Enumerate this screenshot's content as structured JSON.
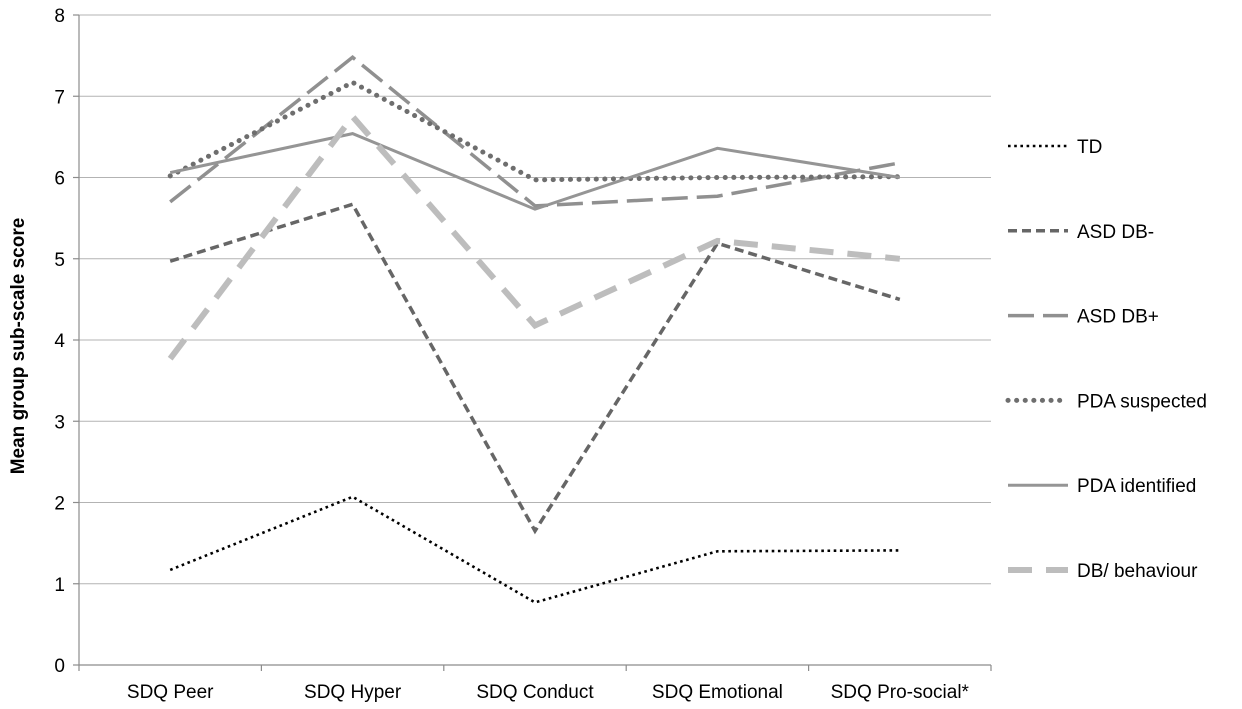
{
  "chart_data": {
    "type": "line",
    "title": "",
    "xlabel": "",
    "ylabel": "Mean group sub-scale score",
    "ylim": [
      0,
      8
    ],
    "yticks": [
      0,
      1,
      2,
      3,
      4,
      5,
      6,
      7,
      8
    ],
    "grid": true,
    "legend_position": "right",
    "categories": [
      "SDQ Peer",
      "SDQ Hyper",
      "SDQ Conduct",
      "SDQ Emotional",
      "SDQ Pro-social*"
    ],
    "series": [
      {
        "name": "TD",
        "values": [
          1.17,
          2.07,
          0.77,
          1.4,
          1.41
        ],
        "color": "#000000",
        "style": "dotted-small"
      },
      {
        "name": "ASD DB-",
        "values": [
          4.97,
          5.67,
          1.65,
          5.19,
          4.5
        ],
        "color": "#666666",
        "style": "dashed-short"
      },
      {
        "name": "ASD DB+",
        "values": [
          5.7,
          7.48,
          5.65,
          5.77,
          6.18
        ],
        "color": "#909090",
        "style": "dashed-long"
      },
      {
        "name": "PDA suspected",
        "values": [
          6.02,
          7.17,
          5.97,
          6.0,
          6.01
        ],
        "color": "#6e6e6e",
        "style": "dotted-round"
      },
      {
        "name": "PDA identified",
        "values": [
          6.06,
          6.54,
          5.61,
          6.36,
          6.0
        ],
        "color": "#959595",
        "style": "solid"
      },
      {
        "name": "DB/ behaviour",
        "values": [
          3.77,
          6.75,
          4.18,
          5.22,
          5.0
        ],
        "color": "#bdbdbd",
        "style": "dashed-thick"
      }
    ]
  }
}
